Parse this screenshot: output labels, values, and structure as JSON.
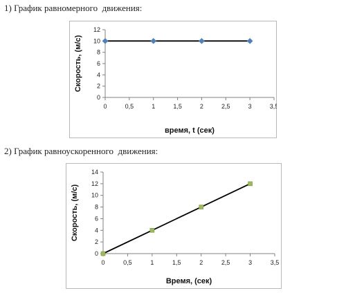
{
  "headings": {
    "first": "1) График равномерного  движения:",
    "second": "2) График равноускоренного  движения:"
  },
  "colors": {
    "line": "#000000",
    "marker_diamond": "#4f81bd",
    "marker_square": "#9bbb59",
    "frame": "#b8b8b8"
  },
  "chart_data": [
    {
      "type": "line",
      "marker": "diamond",
      "x": [
        0,
        1,
        2,
        3
      ],
      "y": [
        10,
        10,
        10,
        10
      ],
      "xlabel": "время, t (сек)",
      "ylabel": "Скорость, (м/с)",
      "xlim": [
        0,
        3.5
      ],
      "ylim": [
        0,
        12
      ],
      "xticks": [
        "0",
        "0,5",
        "1",
        "1,5",
        "2",
        "2,5",
        "3",
        "3,5"
      ],
      "yticks": [
        "0",
        "2",
        "4",
        "6",
        "8",
        "10",
        "12"
      ],
      "grid": false,
      "legend": "none"
    },
    {
      "type": "line",
      "marker": "square",
      "x": [
        0,
        1,
        2,
        3
      ],
      "y": [
        0,
        4,
        8,
        12
      ],
      "xlabel": "Время, (сек)",
      "ylabel": "Скорость, (м/с)",
      "xlim": [
        0,
        3.5
      ],
      "ylim": [
        0,
        14
      ],
      "xticks": [
        "0",
        "0,5",
        "1",
        "1,5",
        "2",
        "2,5",
        "3",
        "3,5"
      ],
      "yticks": [
        "0",
        "2",
        "4",
        "6",
        "8",
        "10",
        "12",
        "14"
      ],
      "grid": false,
      "legend": "none"
    }
  ]
}
